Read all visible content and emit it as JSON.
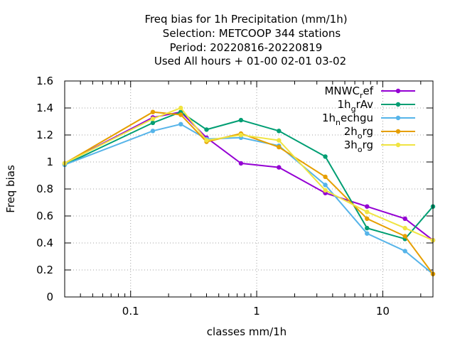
{
  "chart_data": {
    "type": "line",
    "title_lines": [
      "Freq bias  for 1h Precipitation (mm/1h)",
      "Selection: METCOOP    344 stations",
      "Period: 20220816-20220819",
      "Used  All hours + 01-00 02-01 03-02"
    ],
    "xlabel": "classes mm/1h",
    "ylabel": "Freq bias",
    "x_scale": "log",
    "xlim": [
      0.03,
      25
    ],
    "ylim": [
      0,
      1.6
    ],
    "x_ticks": [
      0.1,
      1,
      10
    ],
    "x_tick_labels": [
      "0.1",
      "1",
      "10"
    ],
    "y_ticks": [
      0,
      0.2,
      0.4,
      0.6,
      0.8,
      1,
      1.2,
      1.4,
      1.6
    ],
    "y_tick_labels": [
      "0",
      "0.2",
      "0.4",
      "0.6",
      "0.8",
      "1",
      "1.2",
      "1.4",
      "1.6"
    ],
    "grid": true,
    "legend_position": "top-right",
    "x": [
      0.03,
      0.15,
      0.25,
      0.4,
      0.75,
      1.5,
      3.5,
      7.5,
      15,
      25
    ],
    "series": [
      {
        "name": "MNWC_ref",
        "legend_main": "MNWC",
        "legend_sub": "r",
        "legend_tail": "ef",
        "color": "#9400d3",
        "values": [
          0.99,
          1.33,
          1.37,
          1.18,
          0.99,
          0.96,
          0.77,
          0.67,
          0.58,
          0.42
        ]
      },
      {
        "name": "1h_grAv",
        "legend_main": "1h",
        "legend_sub": "g",
        "legend_tail": "rAv",
        "color": "#009e73",
        "values": [
          0.98,
          1.29,
          1.37,
          1.24,
          1.31,
          1.23,
          1.04,
          0.51,
          0.43,
          0.67
        ]
      },
      {
        "name": "1h_nechgu",
        "legend_main": "1h",
        "legend_sub": "n",
        "legend_tail": "echgu",
        "color": "#56b4e9",
        "values": [
          0.98,
          1.23,
          1.28,
          1.17,
          1.18,
          1.12,
          0.83,
          0.47,
          0.34,
          0.17
        ]
      },
      {
        "name": "2h_org",
        "legend_main": "2h",
        "legend_sub": "o",
        "legend_tail": "rg",
        "color": "#e69f00",
        "values": [
          0.99,
          1.37,
          1.35,
          1.15,
          1.21,
          1.11,
          0.89,
          0.58,
          0.45,
          0.17
        ]
      },
      {
        "name": "3h_org",
        "legend_main": "3h",
        "legend_sub": "o",
        "legend_tail": "rg",
        "color": "#f0e442",
        "values": [
          0.99,
          1.32,
          1.4,
          1.16,
          1.2,
          1.16,
          0.79,
          0.63,
          0.51,
          0.42
        ]
      }
    ]
  }
}
